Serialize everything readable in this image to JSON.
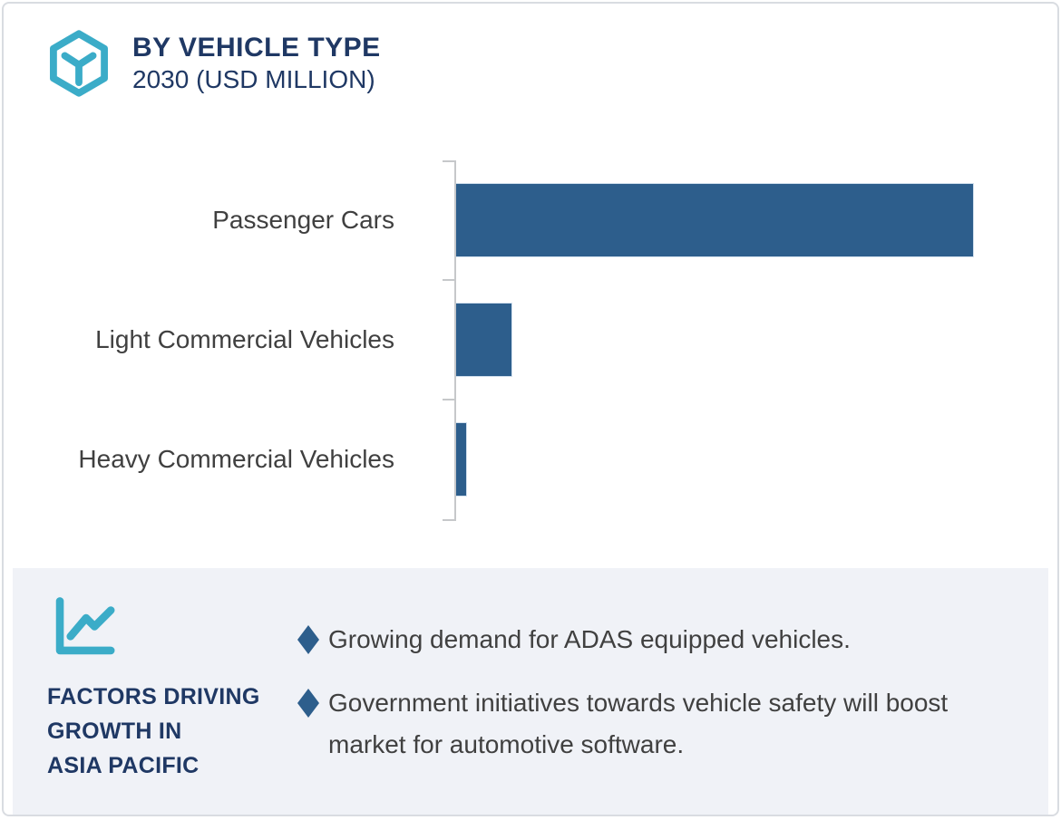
{
  "card": {
    "header": {
      "icon": "cube-hexagon-icon",
      "title": "BY VEHICLE TYPE",
      "subtitle": "2030 (USD MILLION)"
    },
    "chart_data": {
      "type": "bar",
      "orientation": "horizontal",
      "title": "BY VEHICLE TYPE",
      "subtitle": "2030 (USD MILLION)",
      "value_unit": "USD Million",
      "categories": [
        "Passenger Cars",
        "Light Commercial Vehicles",
        "Heavy Commercial Vehicles"
      ],
      "values_relative_pct_of_max": [
        100,
        10.7,
        1.9
      ],
      "value_labels_shown": false,
      "axis_numeric_labels_shown": false,
      "bar_color": "#2d5e8c",
      "axis_color": "#c6c8ca",
      "grid": false,
      "legend": false
    },
    "panel": {
      "icon": "line-chart-icon",
      "heading_lines": [
        "FACTORS DRIVING",
        "GROWTH IN",
        "ASIA PACIFIC"
      ],
      "bullets": [
        "Growing demand for ADAS equipped vehicles.",
        "Government initiatives towards vehicle safety will boost market for automotive software."
      ]
    },
    "colors": {
      "navy_heading": "#1f3864",
      "bar_blue": "#2d5e8c",
      "teal_icon": "#3bacc8",
      "panel_background": "#f0f2f7",
      "body_text": "#404040",
      "axis_gray": "#c6c8ca"
    }
  }
}
